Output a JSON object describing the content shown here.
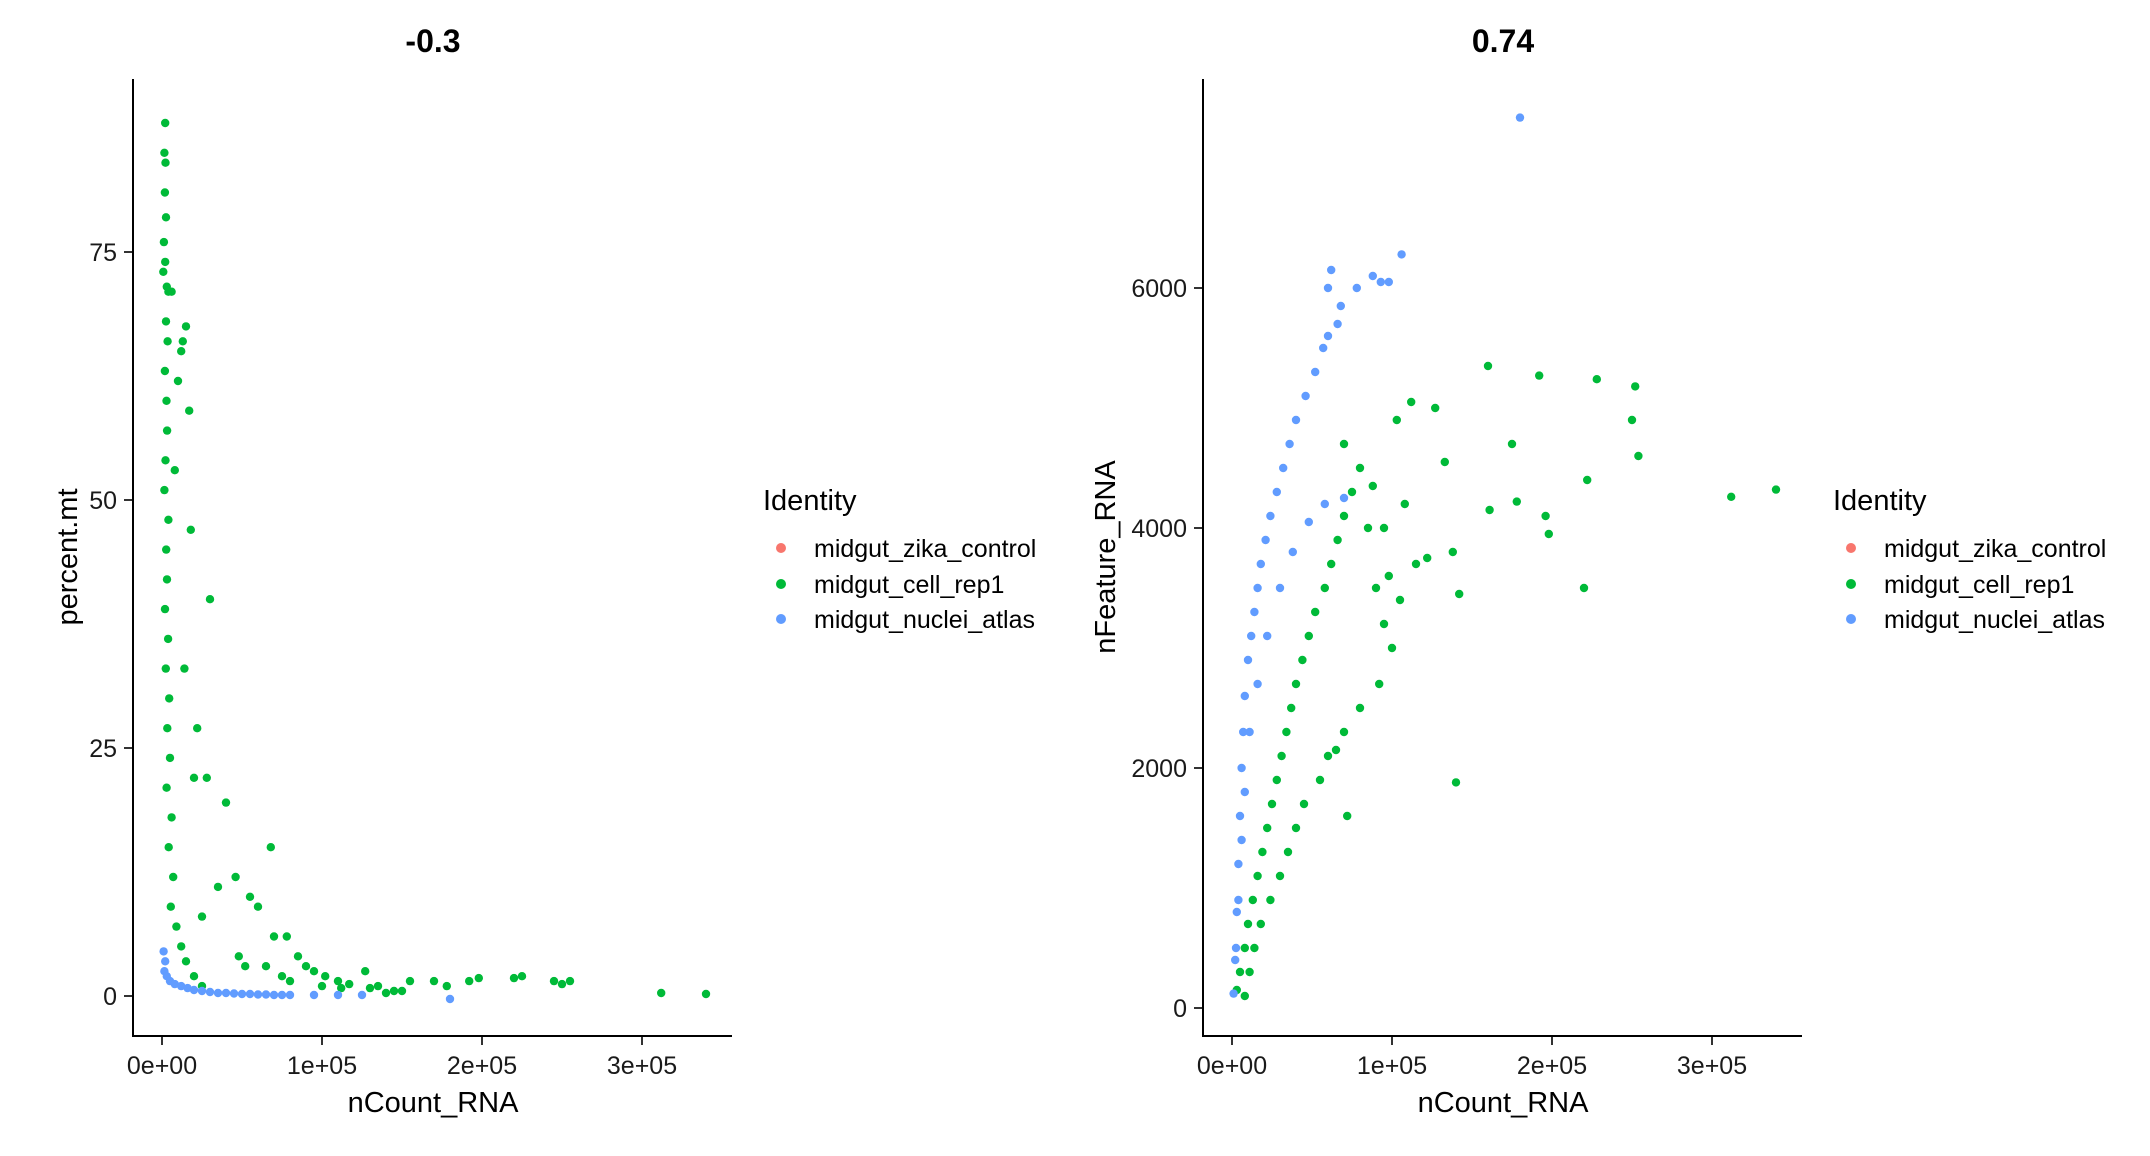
{
  "chart_data": [
    {
      "type": "scatter",
      "title": "-0.3",
      "xlabel": "nCount_RNA",
      "ylabel": "percent.mt",
      "xlim": [
        -18000,
        355000
      ],
      "ylim": [
        -4.5,
        92
      ],
      "x_ticks": [
        {
          "value": 0,
          "label": "0e+00"
        },
        {
          "value": 100000,
          "label": "1e+05"
        },
        {
          "value": 200000,
          "label": "2e+05"
        },
        {
          "value": 300000,
          "label": "3e+05"
        }
      ],
      "y_ticks": [
        {
          "value": 0,
          "label": "0"
        },
        {
          "value": 25,
          "label": "25"
        },
        {
          "value": 50,
          "label": "50"
        },
        {
          "value": 75,
          "label": "75"
        }
      ],
      "grid": false,
      "legend": {
        "title": "Identity",
        "position": "right",
        "entries": [
          "midgut_zika_control",
          "midgut_cell_rep1",
          "midgut_nuclei_atlas"
        ]
      },
      "series": [
        {
          "name": "midgut_zika_control",
          "color": "#F8766D",
          "points": []
        },
        {
          "name": "midgut_cell_rep1",
          "color": "#00BA38",
          "points": [
            [
              2000,
              88
            ],
            [
              1500,
              85
            ],
            [
              2200,
              84
            ],
            [
              1800,
              81
            ],
            [
              2500,
              78.5
            ],
            [
              1200,
              76
            ],
            [
              2000,
              74
            ],
            [
              800,
              73
            ],
            [
              3000,
              71.5
            ],
            [
              4000,
              71
            ],
            [
              6000,
              71
            ],
            [
              2500,
              68
            ],
            [
              3500,
              66
            ],
            [
              1800,
              63
            ],
            [
              2800,
              60
            ],
            [
              3200,
              57
            ],
            [
              2200,
              54
            ],
            [
              1500,
              51
            ],
            [
              4000,
              48
            ],
            [
              2600,
              45
            ],
            [
              3100,
              42
            ],
            [
              1900,
              39
            ],
            [
              3800,
              36
            ],
            [
              2400,
              33
            ],
            [
              4500,
              30
            ],
            [
              3300,
              27
            ],
            [
              5000,
              24
            ],
            [
              2900,
              21
            ],
            [
              6000,
              18
            ],
            [
              4200,
              15
            ],
            [
              7000,
              12
            ],
            [
              5500,
              9
            ],
            [
              9000,
              7
            ],
            [
              12000,
              5
            ],
            [
              15000,
              3.5
            ],
            [
              20000,
              2
            ],
            [
              25000,
              1
            ],
            [
              10000,
              62
            ],
            [
              12000,
              65
            ],
            [
              15000,
              67.5
            ],
            [
              13000,
              66
            ],
            [
              17000,
              59
            ],
            [
              18000,
              47
            ],
            [
              8000,
              53
            ],
            [
              30000,
              40
            ],
            [
              14000,
              33
            ],
            [
              22000,
              27
            ],
            [
              20000,
              22
            ],
            [
              28000,
              22
            ],
            [
              40000,
              19.5
            ],
            [
              68000,
              15
            ],
            [
              46000,
              12
            ],
            [
              55000,
              10
            ],
            [
              35000,
              11
            ],
            [
              60000,
              9
            ],
            [
              25000,
              8
            ],
            [
              70000,
              6
            ],
            [
              78000,
              6
            ],
            [
              85000,
              4
            ],
            [
              90000,
              3
            ],
            [
              95000,
              2.5
            ],
            [
              102000,
              2
            ],
            [
              110000,
              1.5
            ],
            [
              117000,
              1.2
            ],
            [
              127000,
              2.5
            ],
            [
              135000,
              1
            ],
            [
              145000,
              0.5
            ],
            [
              155000,
              1.5
            ],
            [
              170000,
              1.5
            ],
            [
              178000,
              1
            ],
            [
              192000,
              1.5
            ],
            [
              198000,
              1.8
            ],
            [
              220000,
              1.8
            ],
            [
              225000,
              2
            ],
            [
              245000,
              1.5
            ],
            [
              250000,
              1.2
            ],
            [
              255000,
              1.5
            ],
            [
              312000,
              0.3
            ],
            [
              340000,
              0.2
            ],
            [
              48000,
              4
            ],
            [
              52000,
              3
            ],
            [
              65000,
              3
            ],
            [
              75000,
              2
            ],
            [
              80000,
              1.5
            ],
            [
              100000,
              1
            ],
            [
              112000,
              0.8
            ],
            [
              130000,
              0.8
            ],
            [
              140000,
              0.3
            ],
            [
              150000,
              0.5
            ]
          ]
        },
        {
          "name": "midgut_nuclei_atlas",
          "color": "#619CFF",
          "points": [
            [
              1000,
              4.5
            ],
            [
              2000,
              3.5
            ],
            [
              1500,
              2.5
            ],
            [
              3000,
              2
            ],
            [
              5000,
              1.5
            ],
            [
              8000,
              1.2
            ],
            [
              12000,
              1
            ],
            [
              16000,
              0.8
            ],
            [
              20000,
              0.6
            ],
            [
              25000,
              0.5
            ],
            [
              30000,
              0.4
            ],
            [
              35000,
              0.3
            ],
            [
              40000,
              0.3
            ],
            [
              45000,
              0.25
            ],
            [
              50000,
              0.2
            ],
            [
              55000,
              0.2
            ],
            [
              60000,
              0.15
            ],
            [
              65000,
              0.15
            ],
            [
              70000,
              0.1
            ],
            [
              75000,
              0.1
            ],
            [
              80000,
              0.1
            ],
            [
              95000,
              0.1
            ],
            [
              110000,
              0.1
            ],
            [
              125000,
              0.1
            ],
            [
              180000,
              -0.3
            ]
          ]
        }
      ]
    },
    {
      "type": "scatter",
      "title": "0.74",
      "xlabel": "nCount_RNA",
      "ylabel": "nFeature_RNA",
      "xlim": [
        -18000,
        355000
      ],
      "ylim": [
        -250,
        7800
      ],
      "x_ticks": [
        {
          "value": 0,
          "label": "0e+00"
        },
        {
          "value": 100000,
          "label": "1e+05"
        },
        {
          "value": 200000,
          "label": "2e+05"
        },
        {
          "value": 300000,
          "label": "3e+05"
        }
      ],
      "y_ticks": [
        {
          "value": 0,
          "label": "0"
        },
        {
          "value": 2000,
          "label": "2000"
        },
        {
          "value": 4000,
          "label": "4000"
        },
        {
          "value": 6000,
          "label": "6000"
        }
      ],
      "grid": false,
      "legend": {
        "title": "Identity",
        "position": "right",
        "entries": [
          "midgut_zika_control",
          "midgut_cell_rep1",
          "midgut_nuclei_atlas"
        ]
      },
      "series": [
        {
          "name": "midgut_zika_control",
          "color": "#F8766D",
          "points": []
        },
        {
          "name": "midgut_cell_rep1",
          "color": "#00BA38",
          "points": [
            [
              3000,
              150
            ],
            [
              5000,
              300
            ],
            [
              8000,
              500
            ],
            [
              10000,
              700
            ],
            [
              13000,
              900
            ],
            [
              16000,
              1100
            ],
            [
              19000,
              1300
            ],
            [
              22000,
              1500
            ],
            [
              25000,
              1700
            ],
            [
              28000,
              1900
            ],
            [
              31000,
              2100
            ],
            [
              34000,
              2300
            ],
            [
              37000,
              2500
            ],
            [
              40000,
              2700
            ],
            [
              44000,
              2900
            ],
            [
              48000,
              3100
            ],
            [
              52000,
              3300
            ],
            [
              58000,
              3500
            ],
            [
              62000,
              3700
            ],
            [
              66000,
              3900
            ],
            [
              70000,
              4100
            ],
            [
              75000,
              4300
            ],
            [
              80000,
              4500
            ],
            [
              70000,
              4700
            ],
            [
              85000,
              4000
            ],
            [
              90000,
              3500
            ],
            [
              95000,
              3200
            ],
            [
              100000,
              3000
            ],
            [
              92000,
              2700
            ],
            [
              80000,
              2500
            ],
            [
              70000,
              2300
            ],
            [
              60000,
              2100
            ],
            [
              55000,
              1900
            ],
            [
              45000,
              1700
            ],
            [
              40000,
              1500
            ],
            [
              35000,
              1300
            ],
            [
              30000,
              1100
            ],
            [
              24000,
              900
            ],
            [
              18000,
              700
            ],
            [
              14000,
              500
            ],
            [
              11000,
              300
            ],
            [
              8000,
              100
            ],
            [
              103000,
              4900
            ],
            [
              112000,
              5050
            ],
            [
              127000,
              5000
            ],
            [
              133000,
              4550
            ],
            [
              138000,
              3800
            ],
            [
              142000,
              3450
            ],
            [
              140000,
              1880
            ],
            [
              160000,
              5350
            ],
            [
              161000,
              4150
            ],
            [
              175000,
              4700
            ],
            [
              178000,
              4220
            ],
            [
              192000,
              5270
            ],
            [
              196000,
              4100
            ],
            [
              198000,
              3950
            ],
            [
              220000,
              3500
            ],
            [
              222000,
              4400
            ],
            [
              228000,
              5240
            ],
            [
              250000,
              4900
            ],
            [
              252000,
              5180
            ],
            [
              254000,
              4600
            ],
            [
              312000,
              4260
            ],
            [
              340000,
              4320
            ],
            [
              72000,
              1600
            ],
            [
              65000,
              2150
            ],
            [
              105000,
              3400
            ],
            [
              98000,
              3600
            ],
            [
              115000,
              3700
            ],
            [
              122000,
              3750
            ],
            [
              108000,
              4200
            ],
            [
              88000,
              4350
            ],
            [
              95000,
              4000
            ]
          ]
        },
        {
          "name": "midgut_nuclei_atlas",
          "color": "#619CFF",
          "points": [
            [
              1000,
              120
            ],
            [
              2000,
              400
            ],
            [
              3000,
              800
            ],
            [
              4000,
              1200
            ],
            [
              5000,
              1600
            ],
            [
              6000,
              2000
            ],
            [
              7000,
              2300
            ],
            [
              8000,
              2600
            ],
            [
              10000,
              2900
            ],
            [
              12000,
              3100
            ],
            [
              14000,
              3300
            ],
            [
              16000,
              3500
            ],
            [
              18000,
              3700
            ],
            [
              21000,
              3900
            ],
            [
              24000,
              4100
            ],
            [
              28000,
              4300
            ],
            [
              32000,
              4500
            ],
            [
              36000,
              4700
            ],
            [
              40000,
              4900
            ],
            [
              46000,
              5100
            ],
            [
              52000,
              5300
            ],
            [
              57000,
              5500
            ],
            [
              60000,
              5600
            ],
            [
              66000,
              5700
            ],
            [
              68000,
              5850
            ],
            [
              60000,
              6000
            ],
            [
              62000,
              6150
            ],
            [
              78000,
              6000
            ],
            [
              88000,
              6100
            ],
            [
              93000,
              6050
            ],
            [
              98000,
              6050
            ],
            [
              106000,
              6280
            ],
            [
              180000,
              7420
            ],
            [
              70000,
              4250
            ],
            [
              58000,
              4200
            ],
            [
              48000,
              4050
            ],
            [
              38000,
              3800
            ],
            [
              30000,
              3500
            ],
            [
              22000,
              3100
            ],
            [
              16000,
              2700
            ],
            [
              11000,
              2300
            ],
            [
              8000,
              1800
            ],
            [
              6000,
              1400
            ],
            [
              4000,
              900
            ],
            [
              2500,
              500
            ]
          ]
        }
      ]
    }
  ]
}
